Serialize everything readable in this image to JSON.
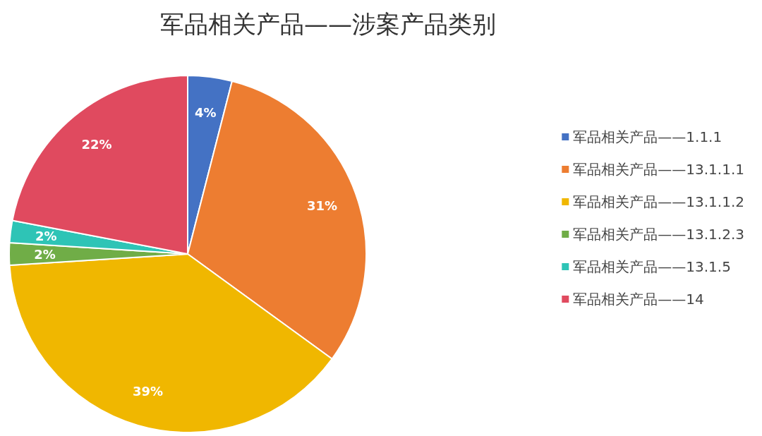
{
  "chart_data": {
    "type": "pie",
    "title": "军品相关产品——涉案产品类别",
    "categories": [
      "军品相关产品——1.1.1",
      "军品相关产品——13.1.1.1",
      "军品相关产品——13.1.1.2",
      "军品相关产品——13.1.2.3",
      "军品相关产品——13.1.5",
      "军品相关产品——14"
    ],
    "values": [
      4,
      31,
      39,
      2,
      2,
      22
    ],
    "colors": [
      "#4472c4",
      "#ed7d31",
      "#f0b700",
      "#70ad47",
      "#2ec4b6",
      "#e04a5f"
    ],
    "value_labels": [
      "4%",
      "31%",
      "39%",
      "2%",
      "2%",
      "22%"
    ],
    "legend": "right"
  }
}
